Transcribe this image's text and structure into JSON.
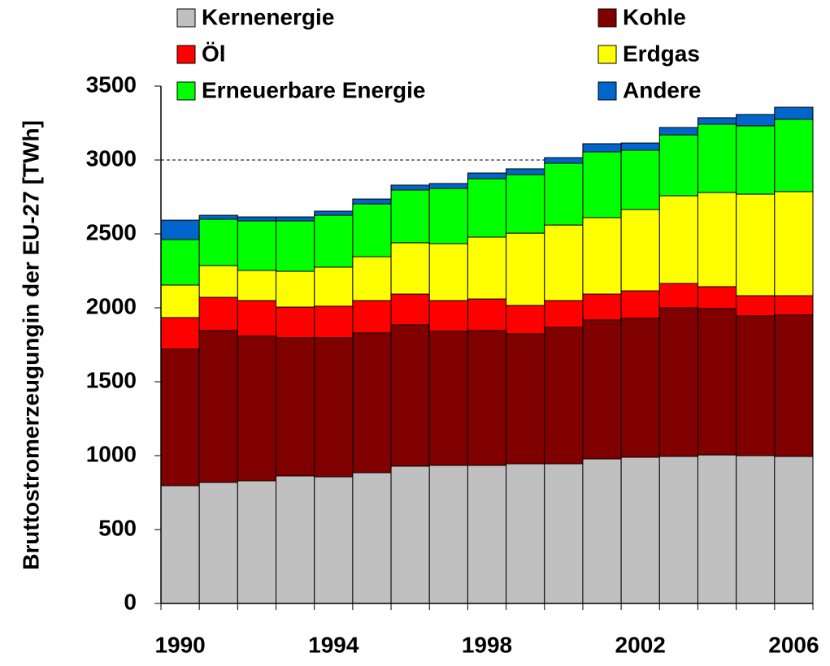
{
  "chart_data": {
    "type": "stacked_bar",
    "y_label": "Bruttostromerzeugungin der EU-27 [TWh]",
    "categories": [
      "1990",
      null,
      null,
      null,
      "1994",
      null,
      null,
      null,
      "1998",
      null,
      null,
      null,
      "2002",
      null,
      null,
      null,
      "2006"
    ],
    "series": [
      {
        "name": "Kernenergie",
        "color": "#c0c0c0",
        "values": [
          797,
          819,
          830,
          863,
          857,
          885,
          929,
          934,
          934,
          945,
          945,
          978,
          989,
          995,
          1005,
          1000,
          995
        ]
      },
      {
        "name": "Kohle",
        "color": "#800000",
        "values": [
          923,
          1027,
          978,
          934,
          940,
          945,
          956,
          907,
          912,
          879,
          923,
          940,
          940,
          1005,
          990,
          945,
          956
        ]
      },
      {
        "name": "Öl",
        "color": "#ff0000",
        "values": [
          214,
          225,
          241,
          208,
          214,
          219,
          208,
          208,
          214,
          192,
          181,
          175,
          186,
          165,
          148,
          137,
          131
        ]
      },
      {
        "name": "Erdgas",
        "color": "#ffff00",
        "values": [
          220,
          215,
          204,
          242,
          264,
          297,
          347,
          385,
          418,
          489,
          511,
          517,
          550,
          593,
          637,
          687,
          704
        ]
      },
      {
        "name": "Erneuerbare Energie",
        "color": "#00ff00",
        "values": [
          308,
          313,
          335,
          341,
          351,
          357,
          357,
          374,
          396,
          396,
          418,
          445,
          401,
          412,
          462,
          462,
          489
        ]
      },
      {
        "name": "Andere",
        "color": "#0066cc",
        "values": [
          131,
          27,
          27,
          27,
          28,
          33,
          33,
          33,
          38,
          39,
          38,
          55,
          49,
          50,
          44,
          77,
          82
        ]
      }
    ],
    "ylim": [
      0,
      3500
    ],
    "yticks": [
      0,
      500,
      1000,
      1500,
      2000,
      2500,
      3000,
      3500
    ],
    "reference_line": 3000
  }
}
